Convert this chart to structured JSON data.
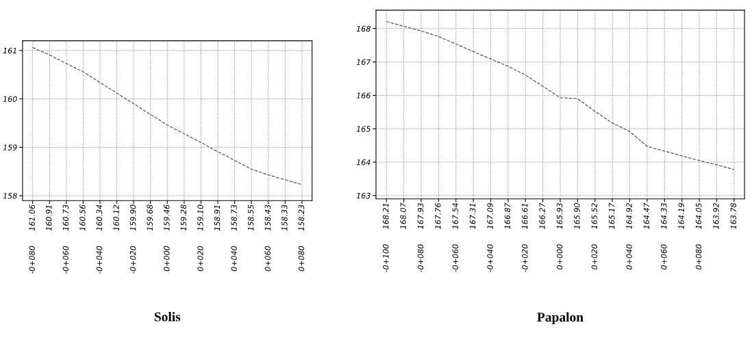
{
  "chart_data": [
    {
      "type": "line",
      "title": "Solis",
      "categories": [
        "-0+080",
        null,
        "-0+060",
        null,
        "-0+040",
        null,
        "-0+020",
        null,
        "0+000",
        null,
        "0+020",
        null,
        "0+040",
        null,
        "0+060",
        null,
        "0+080"
      ],
      "series": [
        {
          "color": "#555555",
          "values": [
            161.06,
            160.91,
            160.73,
            160.56,
            160.34,
            160.12,
            159.9,
            159.68,
            159.46,
            159.28,
            159.1,
            158.91,
            158.73,
            158.55,
            158.43,
            158.33,
            158.23
          ],
          "value_labels": [
            "161.06",
            "160.91",
            "160.73",
            "160.56",
            "160.34",
            "160.12",
            "159.90",
            "159.68",
            "159.46",
            "159.28",
            "159.10",
            "158.91",
            "158.73",
            "158.55",
            "158.43",
            "158.33",
            "158.23"
          ]
        }
      ],
      "ylim": [
        157.9,
        161.2
      ],
      "yticks": [
        158,
        159,
        160,
        161
      ],
      "grid": true,
      "line_style": "dashed",
      "marker": "none"
    },
    {
      "type": "line",
      "title": "Papalon",
      "categories": [
        "-0+100",
        null,
        "-0+080",
        null,
        "-0+060",
        null,
        "-0+040",
        null,
        "-0+020",
        null,
        "0+000",
        null,
        "0+020",
        null,
        "0+040",
        null,
        "0+060",
        null,
        "0+080",
        null,
        null
      ],
      "series": [
        {
          "color": "#555555",
          "values": [
            168.21,
            168.07,
            167.93,
            167.76,
            167.54,
            167.31,
            167.09,
            166.87,
            166.61,
            166.27,
            165.93,
            165.9,
            165.52,
            165.17,
            164.92,
            164.47,
            164.33,
            164.19,
            164.05,
            163.92,
            163.78
          ],
          "value_labels": [
            "168.21",
            "168.07",
            "167.93",
            "167.76",
            "167.54",
            "167.31",
            "167.09",
            "166.87",
            "166.61",
            "166.27",
            "165.93",
            "165.90",
            "165.52",
            "165.17",
            "164.92",
            "164.47",
            "164.33",
            "164.19",
            "164.05",
            "163.92",
            "163.78"
          ]
        }
      ],
      "ylim": [
        162.9,
        168.55
      ],
      "yticks": [
        163,
        164,
        165,
        166,
        167,
        168
      ],
      "grid": true,
      "line_style": "dashed",
      "marker": "none"
    }
  ]
}
